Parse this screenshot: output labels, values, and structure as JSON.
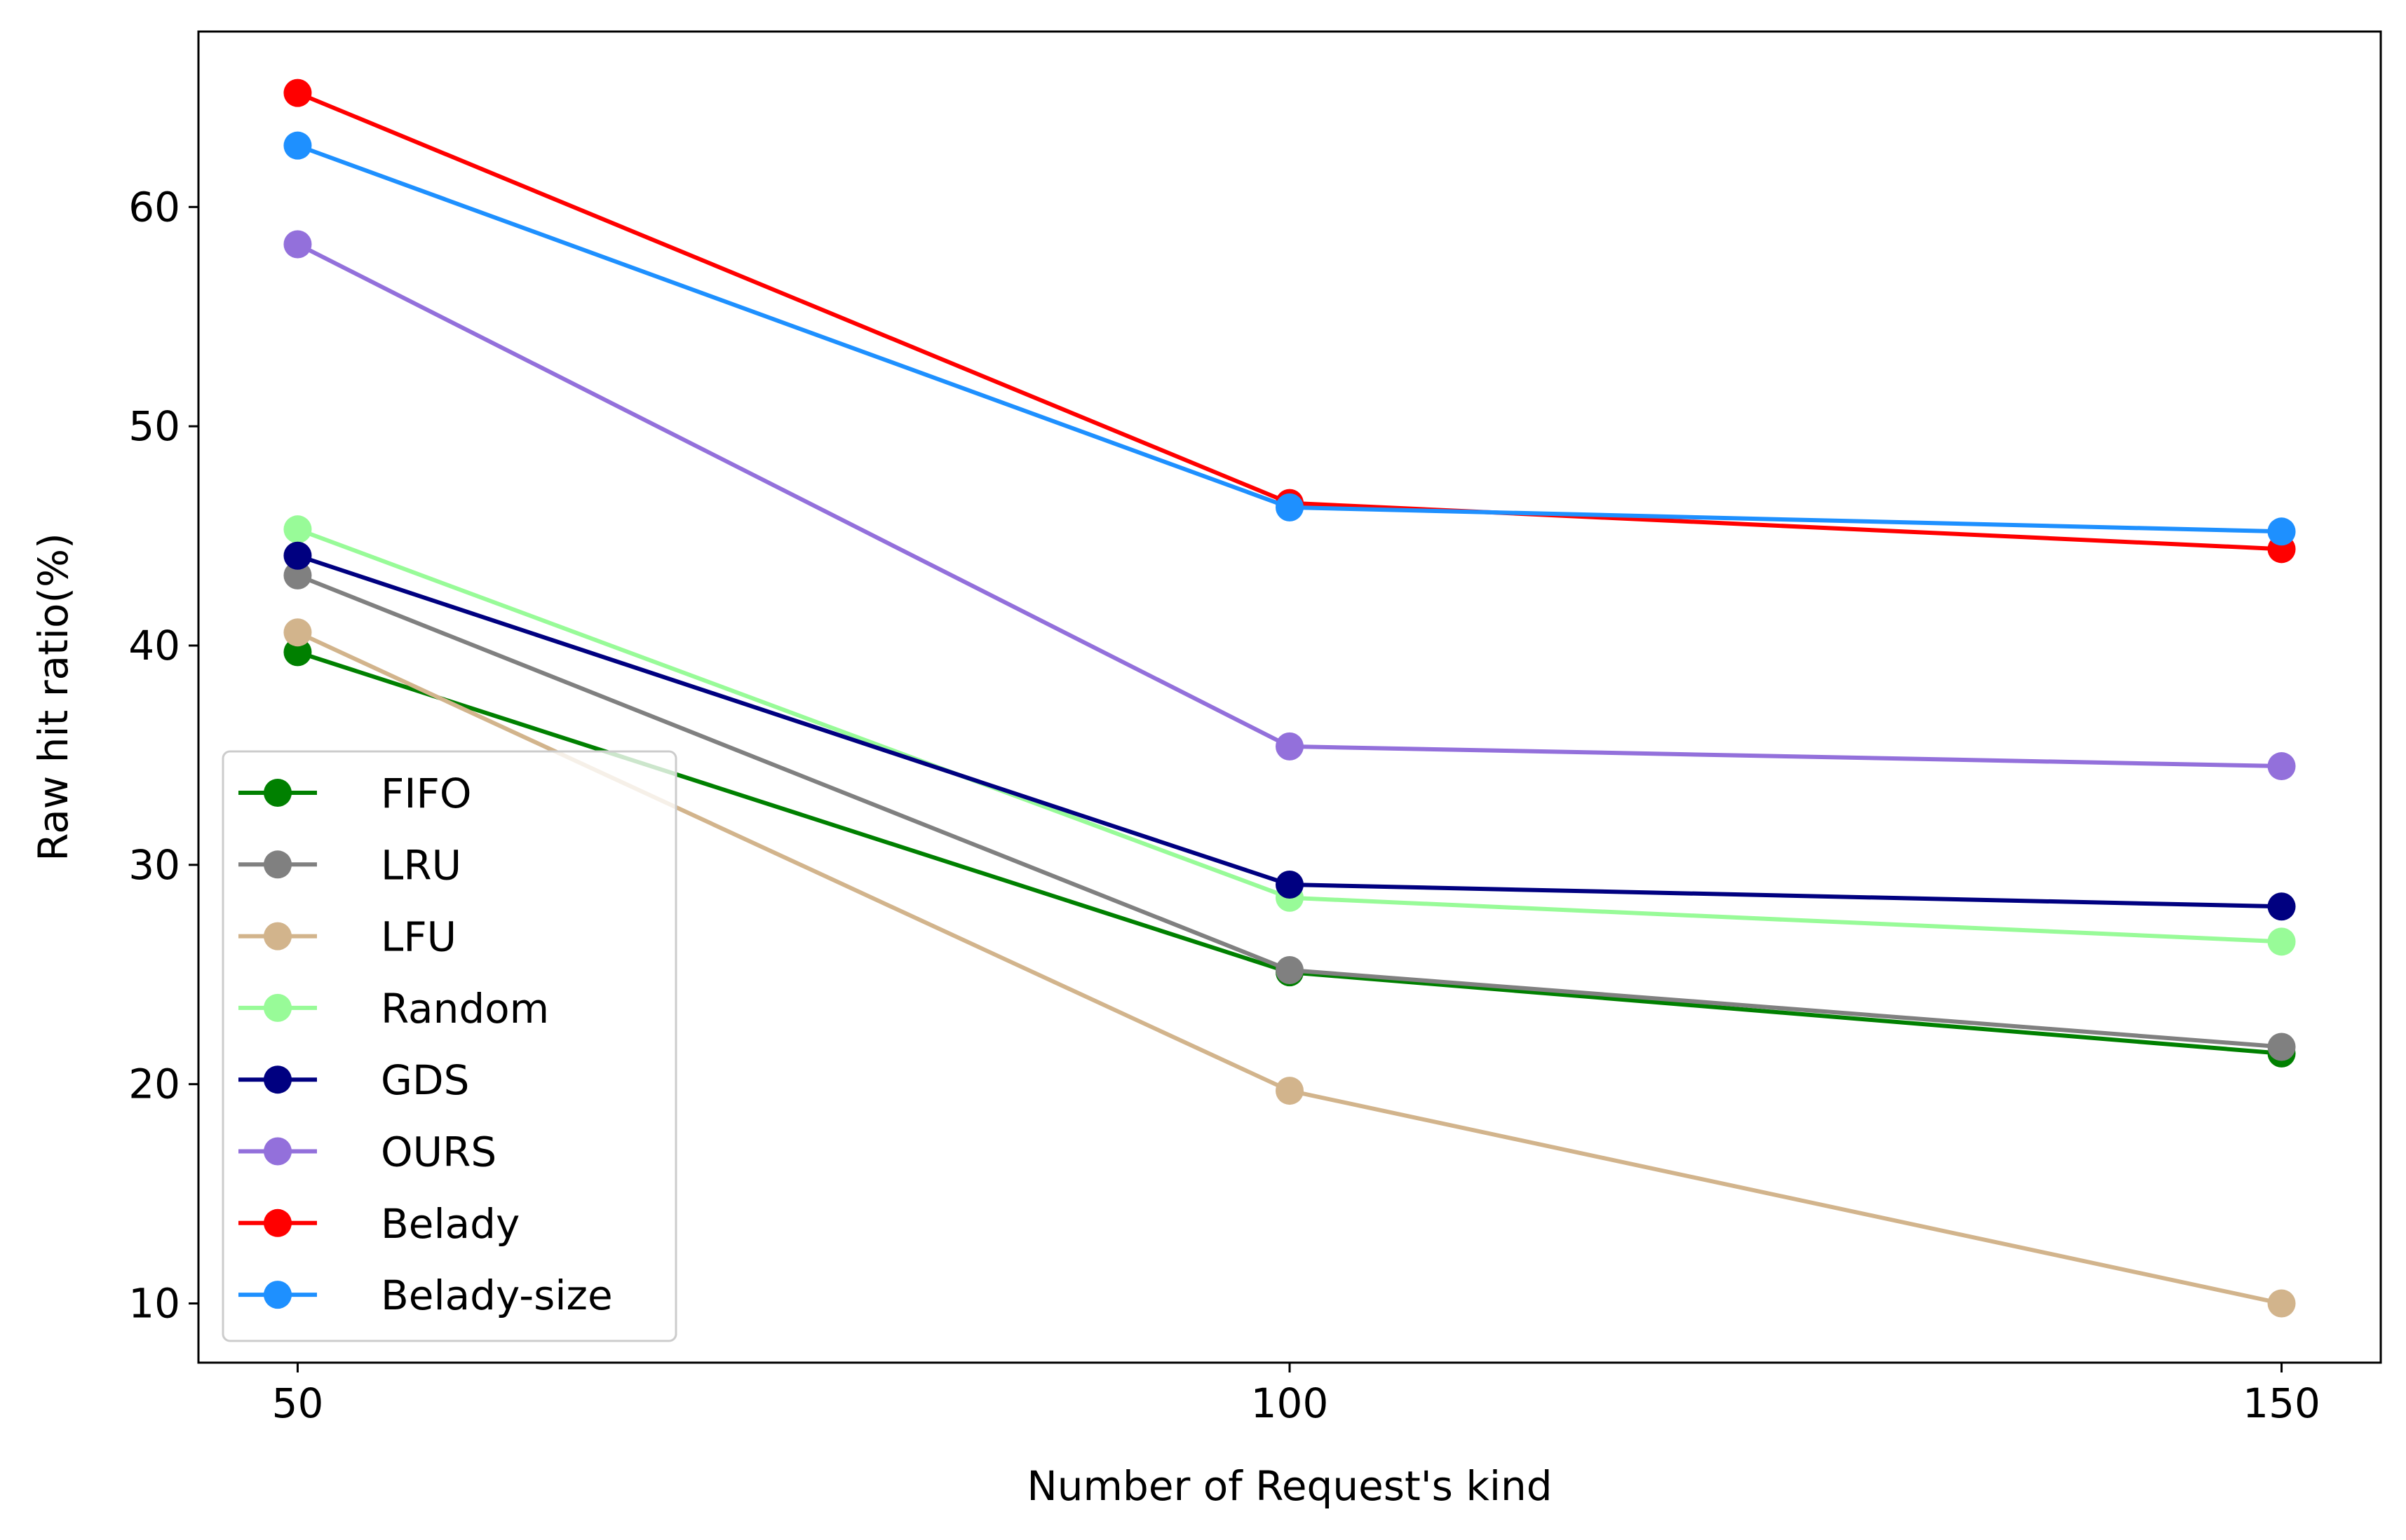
{
  "chart_data": {
    "type": "line",
    "title": "",
    "xlabel": "Number of Request's kind",
    "ylabel": "Raw hit ratio(%)",
    "x": [
      50,
      100,
      150
    ],
    "xlim": [
      45,
      155
    ],
    "ylim": [
      7.3,
      68.0
    ],
    "xticks": [
      "50",
      "100",
      "150"
    ],
    "yticks": [
      "10",
      "20",
      "30",
      "40",
      "50",
      "60"
    ],
    "grid": false,
    "legend_position": "lower-left",
    "series": [
      {
        "name": "FIFO",
        "color": "#008000",
        "values": [
          39.7,
          25.1,
          21.4
        ]
      },
      {
        "name": "LRU",
        "color": "#808080",
        "values": [
          43.2,
          25.2,
          21.7
        ]
      },
      {
        "name": "LFU",
        "color": "#d2b48c",
        "values": [
          40.6,
          19.7,
          10.0
        ]
      },
      {
        "name": "Random",
        "color": "#98fb98",
        "values": [
          45.3,
          28.5,
          26.5
        ]
      },
      {
        "name": "GDS",
        "color": "#000080",
        "values": [
          44.1,
          29.1,
          28.1
        ]
      },
      {
        "name": "OURS",
        "color": "#9370db",
        "values": [
          58.3,
          35.4,
          34.5
        ]
      },
      {
        "name": "Belady",
        "color": "#ff0000",
        "values": [
          65.2,
          46.5,
          44.4
        ]
      },
      {
        "name": "Belady-size",
        "color": "#1e90ff",
        "values": [
          62.8,
          46.3,
          45.2
        ]
      }
    ]
  }
}
